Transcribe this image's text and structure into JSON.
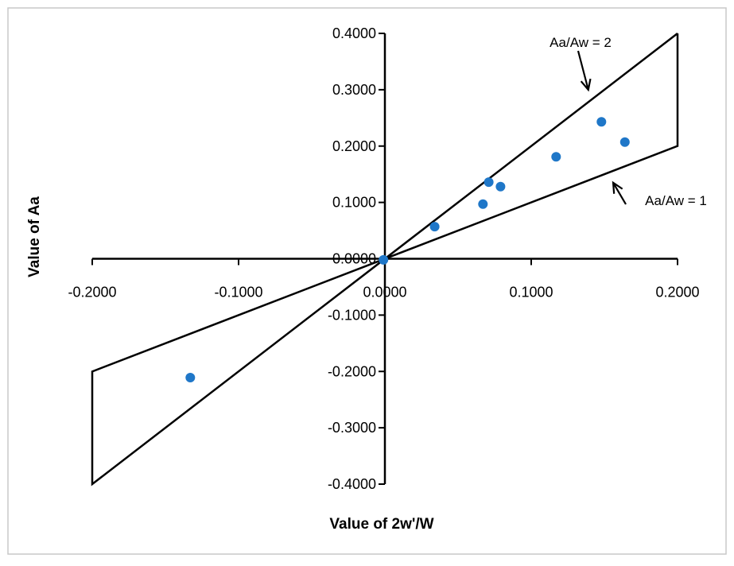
{
  "chart_data": {
    "type": "scatter",
    "title": "",
    "xlabel": "Value of 2w'/W",
    "ylabel": "Value of Aa",
    "xlim": [
      -0.2,
      0.2
    ],
    "ylim": [
      -0.4,
      0.4
    ],
    "x_ticks": [
      -0.2,
      -0.1,
      0.0,
      0.1,
      0.2
    ],
    "y_ticks": [
      -0.4,
      -0.3,
      -0.2,
      -0.1,
      0.0,
      0.1,
      0.2,
      0.3,
      0.4
    ],
    "x_tick_labels": [
      "-0.2000",
      "-0.1000",
      "0.0000",
      "0.1000",
      "0.2000"
    ],
    "y_tick_labels": [
      "-0.4000",
      "-0.3000",
      "-0.2000",
      "-0.1000",
      "0.0000",
      "0.1000",
      "0.2000",
      "0.3000",
      "0.4000"
    ],
    "grid": false,
    "point_color": "#1f77c8",
    "series": [
      {
        "name": "Aa",
        "x": [
          -0.001,
          0.034,
          0.067,
          0.071,
          0.079,
          0.117,
          0.148,
          0.164,
          -0.133
        ],
        "y": [
          -0.002,
          0.057,
          0.097,
          0.136,
          0.128,
          0.181,
          0.243,
          0.207,
          -0.211
        ]
      }
    ],
    "envelope": {
      "polygon": [
        [
          0.2,
          0.4
        ],
        [
          0.2,
          0.2
        ],
        [
          -0.2,
          -0.2
        ],
        [
          -0.2,
          -0.4
        ],
        [
          0.2,
          0.4
        ]
      ]
    },
    "annotations": [
      {
        "text": "Aa/Aw = 2",
        "arrow_to": [
          0.139,
          0.3
        ]
      },
      {
        "text": "Aa/Aw = 1",
        "arrow_to": [
          0.156,
          0.135
        ]
      }
    ]
  }
}
